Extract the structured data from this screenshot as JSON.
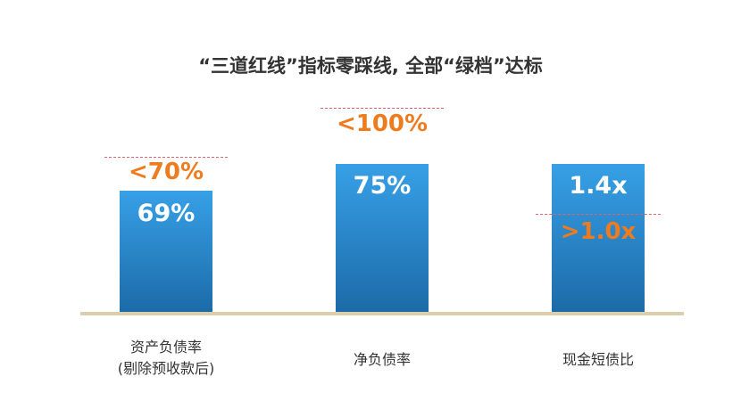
{
  "title": "“三道红线”指标零踩线, 全部“绿档”达标",
  "colors": {
    "bar": "#2a86d0",
    "threshold_text": "#ef7b1f",
    "threshold_line": "#e0636e",
    "baseline": "#d9cfae"
  },
  "chart_data": {
    "type": "bar",
    "title": "“三道红线”指标零踩线, 全部“绿档”达标",
    "categories": [
      "资产负债率\n(剔除预收款后)",
      "净负债率",
      "现金短债比"
    ],
    "category_lines": [
      [
        "资产负债率",
        "(剔除预收款后)"
      ],
      [
        "净负债率"
      ],
      [
        "现金短债比"
      ]
    ],
    "values": [
      69,
      75,
      1.4
    ],
    "value_labels": [
      "69%",
      "75%",
      "1.4x"
    ],
    "thresholds": [
      70,
      100,
      1.0
    ],
    "threshold_labels": [
      "<70%",
      "<100%",
      ">1.0x"
    ],
    "grid": false,
    "legend": "none"
  }
}
